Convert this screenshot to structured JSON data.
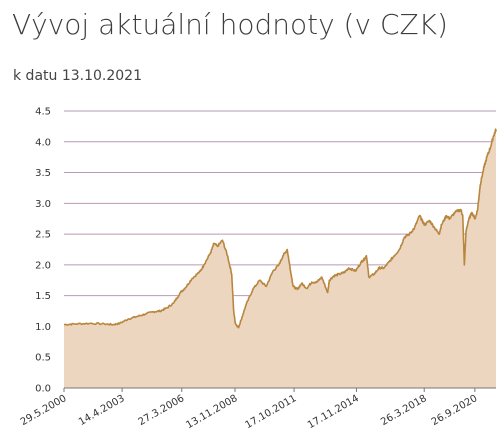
{
  "header": {
    "title": "Vývoj aktuální hodnoty (v CZK)",
    "subtitle": "k datu 13.10.2021"
  },
  "colors": {
    "line": "#b8863e",
    "area": "#ecd6c0",
    "grid": "#b79ab8",
    "axis": "#777777"
  },
  "chart_data": {
    "type": "area",
    "title": "Vývoj aktuální hodnoty (v CZK)",
    "subtitle": "k datu 13.10.2021",
    "xlabel": "",
    "ylabel": "",
    "ylim": [
      0,
      4.5
    ],
    "y_ticks": [
      "0.0",
      "0.5",
      "1.0",
      "1.5",
      "2.0",
      "2.5",
      "3.0",
      "3.5",
      "4.0",
      "4.5"
    ],
    "grid": true,
    "x_range": [
      "2000-05-29",
      "2021-10-13"
    ],
    "x_ticks": [
      "29.5.2000",
      "14.4.2003",
      "27.3.2006",
      "13.11.2008",
      "17.10.2011",
      "17.11.2014",
      "26.3.2018",
      "26.9.2020"
    ],
    "x_tick_dates": [
      "2000-05-29",
      "2003-04-14",
      "2006-03-27",
      "2008-11-13",
      "2011-10-17",
      "2014-11-17",
      "2018-03-26",
      "2020-09-26"
    ],
    "series": [
      {
        "dates": [
          "2000-05-29",
          "2000-12-01",
          "2001-09-01",
          "2002-06-01",
          "2002-11-01",
          "2003-03-01",
          "2003-08-01",
          "2004-01-01",
          "2004-06-01",
          "2004-11-01",
          "2005-03-01",
          "2005-07-01",
          "2005-11-01",
          "2006-03-01",
          "2006-06-01",
          "2006-10-01",
          "2007-03-01",
          "2007-05-01",
          "2007-09-01",
          "2007-11-01",
          "2008-01-01",
          "2008-04-01",
          "2008-07-01",
          "2008-09-15",
          "2008-10-20",
          "2008-11-20",
          "2009-01-15",
          "2009-03-01",
          "2009-06-01",
          "2009-10-01",
          "2010-02-01",
          "2010-06-01",
          "2010-10-01",
          "2011-01-15",
          "2011-04-01",
          "2011-06-15",
          "2011-08-15",
          "2011-10-01",
          "2011-12-15",
          "2012-03-01",
          "2012-06-01",
          "2012-09-01",
          "2012-12-01",
          "2013-03-01",
          "2013-06-15",
          "2013-07-15",
          "2013-10-01",
          "2014-01-15",
          "2014-04-15",
          "2014-07-01",
          "2014-11-01",
          "2015-02-15",
          "2015-04-15",
          "2015-05-15",
          "2015-07-01",
          "2015-10-01",
          "2016-01-01",
          "2016-04-01",
          "2016-07-01",
          "2016-10-01",
          "2017-01-01",
          "2017-04-01",
          "2017-07-01",
          "2017-10-01",
          "2018-01-01",
          "2018-02-15",
          "2018-04-01",
          "2018-07-01",
          "2018-10-01",
          "2018-12-20",
          "2019-02-01",
          "2019-05-01",
          "2019-07-01",
          "2019-10-01",
          "2020-01-15",
          "2020-02-20",
          "2020-03-20",
          "2020-04-20",
          "2020-06-01",
          "2020-08-01",
          "2020-10-01",
          "2020-11-15",
          "2021-01-01",
          "2021-03-01",
          "2021-05-01",
          "2021-07-01",
          "2021-09-01",
          "2021-10-13"
        ],
        "values": [
          1.03,
          1.04,
          1.05,
          1.04,
          1.03,
          1.05,
          1.12,
          1.16,
          1.2,
          1.24,
          1.25,
          1.3,
          1.38,
          1.55,
          1.63,
          1.78,
          1.9,
          2.0,
          2.2,
          2.35,
          2.3,
          2.4,
          2.15,
          1.85,
          1.25,
          1.05,
          0.98,
          1.1,
          1.35,
          1.6,
          1.75,
          1.65,
          1.9,
          2.0,
          2.15,
          2.25,
          1.9,
          1.65,
          1.6,
          1.7,
          1.62,
          1.72,
          1.72,
          1.8,
          1.55,
          1.75,
          1.82,
          1.85,
          1.88,
          1.95,
          1.9,
          2.05,
          2.1,
          2.15,
          1.8,
          1.85,
          1.95,
          1.95,
          2.05,
          2.15,
          2.25,
          2.45,
          2.5,
          2.6,
          2.8,
          2.72,
          2.65,
          2.72,
          2.6,
          2.5,
          2.65,
          2.8,
          2.75,
          2.85,
          2.9,
          2.8,
          2.0,
          2.55,
          2.72,
          2.85,
          2.75,
          2.9,
          3.3,
          3.55,
          3.75,
          3.9,
          4.1,
          4.2
        ]
      }
    ]
  }
}
